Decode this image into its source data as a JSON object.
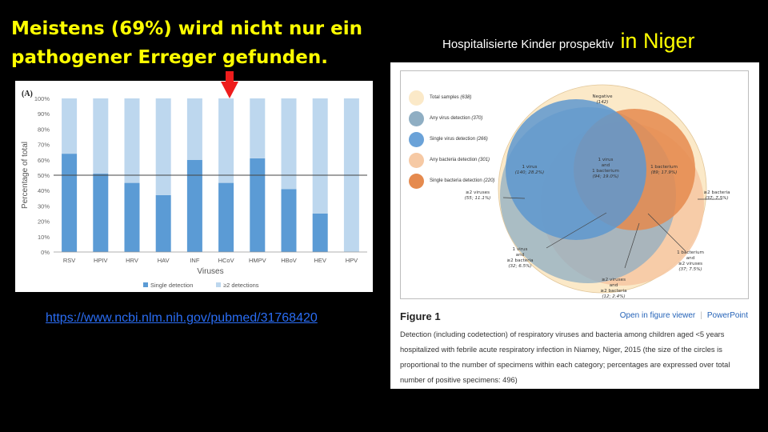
{
  "headline": {
    "line1": "Meistens (69%) wird nicht nur ein",
    "line2": "pathogener Erreger gefunden."
  },
  "right_title": {
    "small": "Hospitalisierte Kinder prospektiv",
    "big": "in Niger"
  },
  "link_text": "https://www.ncbi.nlm.nih.gov/pubmed/31768420",
  "colors": {
    "single": "#5b9bd5",
    "multi": "#bdd7ee",
    "highlight_arrow": "#ee1c1c",
    "headline": "#ffff00"
  },
  "chart_data": {
    "type": "bar",
    "panel_label": "(A)",
    "categories": [
      "RSV",
      "HPIV",
      "HRV",
      "HAV",
      "INF",
      "HCoV",
      "HMPV",
      "HBoV",
      "HEV",
      "HPV"
    ],
    "series": [
      {
        "name": "Single detection",
        "values": [
          64,
          51,
          45,
          37,
          60,
          45,
          61,
          41,
          25,
          0
        ]
      },
      {
        "name": "≥2 detections",
        "values": [
          36,
          49,
          55,
          63,
          40,
          55,
          39,
          59,
          75,
          100
        ]
      }
    ],
    "stacked": true,
    "xlabel": "Viruses",
    "ylabel": "Percentage of total",
    "ylim": [
      0,
      100
    ],
    "yticks": [
      "0%",
      "10%",
      "20%",
      "30%",
      "40%",
      "50%",
      "60%",
      "70%",
      "80%",
      "90%",
      "100%"
    ],
    "reference_line": 50,
    "highlighted_category": "HCoV",
    "legend_position": "bottom"
  },
  "figure": {
    "legend": [
      {
        "label": "Total samples",
        "count": "(638)",
        "color": "#fbe9c8"
      },
      {
        "label": "Any virus detection",
        "count": "(370)",
        "color": "#8faec3"
      },
      {
        "label": "Single virus detection",
        "count": "(266)",
        "color": "#6aa2d8"
      },
      {
        "label": "Any bacteria detection",
        "count": "(301)",
        "color": "#f6c9a4"
      },
      {
        "label": "Single bacteria detection",
        "count": "(220)",
        "color": "#e58a4e"
      }
    ],
    "venn_labels": {
      "negative": [
        "Negative",
        "(142)"
      ],
      "virus": [
        "1 virus",
        "(140; 28.2%)"
      ],
      "overlap": [
        "1 virus",
        "and",
        "1 bacterium",
        "(94; 19.0%)"
      ],
      "bacterium": [
        "1 bacterium",
        "(89; 17.9%)"
      ],
      "multi_virus": [
        "≥2 viruses",
        "(55; 11.1%)"
      ],
      "multi_bacteria": [
        "≥2 bacteria",
        "(37; 7.5%)"
      ],
      "virus_multi_bact": [
        "1 virus",
        "and",
        "≥2 bacteria",
        "(32; 6.5%)"
      ],
      "multi_virus_multi_bact": [
        "≥2 viruses",
        "and",
        "≥2 bacteria",
        "(12; 2.4%)"
      ],
      "bact_multi_virus": [
        "1 bacterium",
        "and",
        "≥2 viruses",
        "(37; 7.5%)"
      ]
    },
    "label": "Figure 1",
    "open_viewer": "Open in figure viewer",
    "powerpoint": "PowerPoint",
    "caption": "Detection (including codetection) of respiratory viruses and bacteria among children aged <5 years hospitalized with febrile acute respiratory infection in Niamey, Niger, 2015 (the size of the circles is proportional to the number of specimens within each category; percentages are expressed over total number of positive specimens: 496)"
  }
}
